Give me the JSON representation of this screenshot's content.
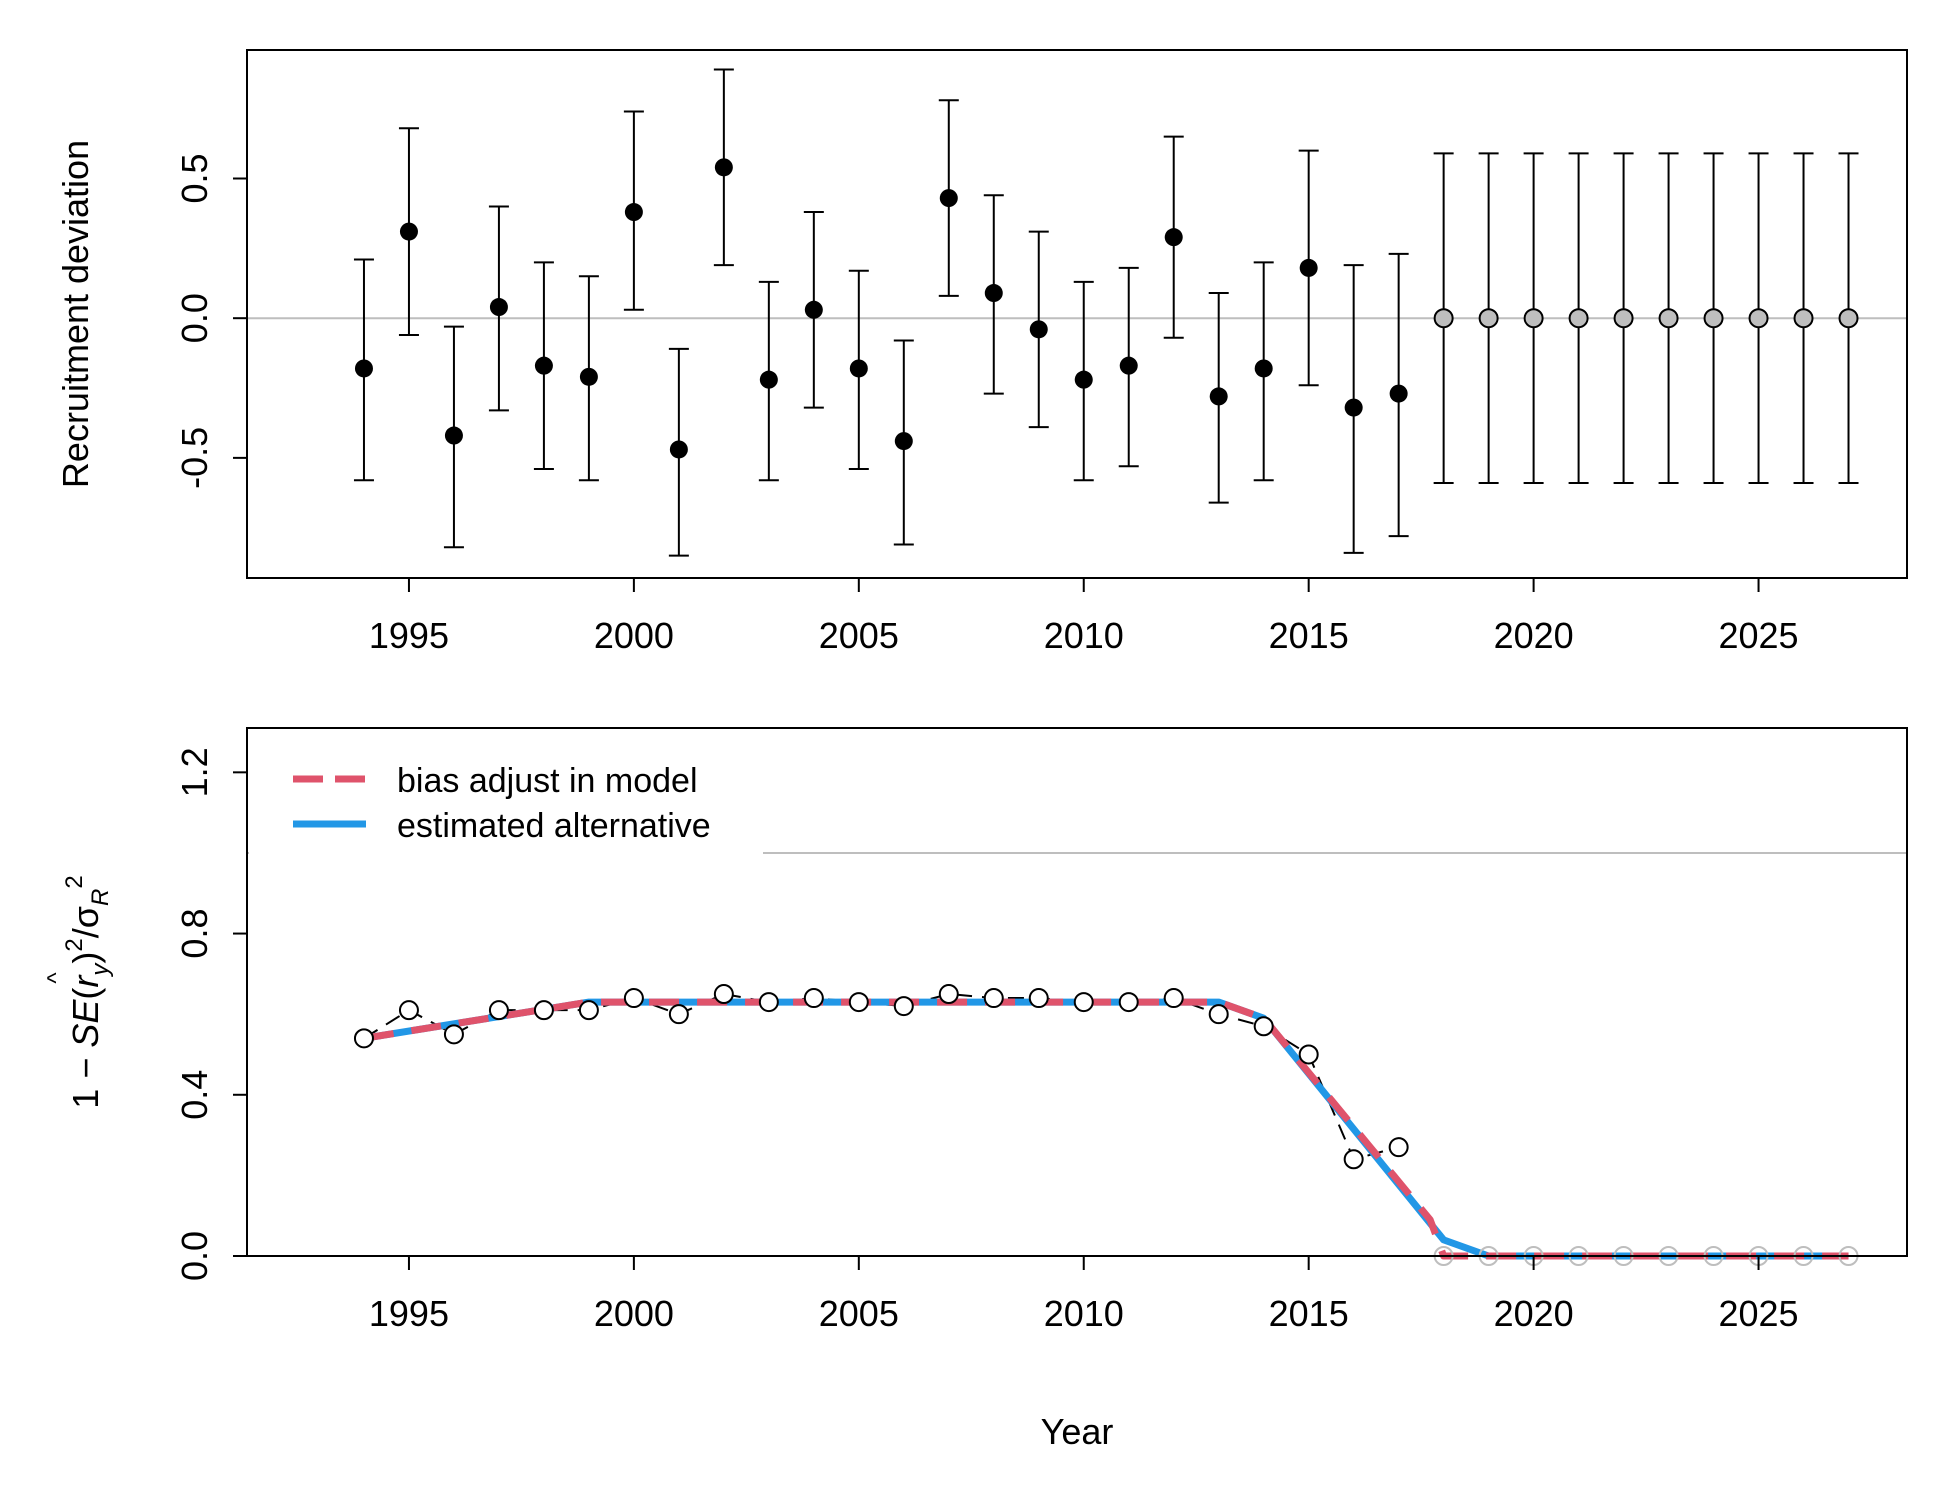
{
  "chart_data": [
    {
      "type": "scatter",
      "panel": "top",
      "ylabel": "Recruitment deviation",
      "xlim": [
        1991.4,
        2028.3
      ],
      "ylim": [
        -0.93,
        0.96
      ],
      "x_ticks": [
        1995,
        2000,
        2005,
        2010,
        2015,
        2020,
        2025
      ],
      "y_ticks": [
        -0.5,
        0.0,
        0.5
      ],
      "y_tick_labels": [
        "-0.5",
        "0.0",
        "0.5"
      ],
      "reference_line": 0,
      "grid": false,
      "colors": {
        "estimated": "#000000",
        "forecast": "#bebebe",
        "reference": "#bebebe"
      },
      "series": [
        {
          "x": [
            1994,
            1995,
            1996,
            1997,
            1998,
            1999,
            2000,
            2001,
            2002,
            2003,
            2004,
            2005,
            2006,
            2007,
            2008,
            2009,
            2010,
            2011,
            2012,
            2013,
            2014,
            2015,
            2016,
            2017
          ],
          "values": [
            -0.18,
            0.31,
            -0.42,
            0.04,
            -0.17,
            -0.21,
            0.38,
            -0.47,
            0.54,
            -0.22,
            0.03,
            -0.18,
            -0.44,
            0.43,
            0.09,
            -0.04,
            -0.22,
            -0.17,
            0.29,
            -0.28,
            -0.18,
            0.18,
            -0.32,
            -0.27
          ],
          "lower": [
            -0.58,
            -0.06,
            -0.82,
            -0.33,
            -0.54,
            -0.58,
            0.03,
            -0.85,
            0.19,
            -0.58,
            -0.32,
            -0.54,
            -0.81,
            0.08,
            -0.27,
            -0.39,
            -0.58,
            -0.53,
            -0.07,
            -0.66,
            -0.58,
            -0.24,
            -0.84,
            -0.78
          ],
          "upper": [
            0.21,
            0.68,
            -0.03,
            0.4,
            0.2,
            0.15,
            0.74,
            -0.11,
            0.89,
            0.13,
            0.38,
            0.17,
            -0.08,
            0.78,
            0.44,
            0.31,
            0.13,
            0.18,
            0.65,
            0.09,
            0.2,
            0.6,
            0.19,
            0.23
          ]
        },
        {
          "x": [
            2018,
            2019,
            2020,
            2021,
            2022,
            2023,
            2024,
            2025,
            2026,
            2027
          ],
          "values": [
            0,
            0,
            0,
            0,
            0,
            0,
            0,
            0,
            0,
            0
          ],
          "lower": [
            -0.59,
            -0.59,
            -0.59,
            -0.59,
            -0.59,
            -0.59,
            -0.59,
            -0.59,
            -0.59,
            -0.59
          ],
          "upper": [
            0.59,
            0.59,
            0.59,
            0.59,
            0.59,
            0.59,
            0.59,
            0.59,
            0.59,
            0.59
          ]
        }
      ]
    },
    {
      "type": "line",
      "panel": "bottom",
      "xlabel": "Year",
      "ylabel": "1 − SE(r̂y)² / σR²",
      "xlim": [
        1991.4,
        2028.3
      ],
      "ylim": [
        0,
        1.31
      ],
      "x_ticks": [
        1995,
        2000,
        2005,
        2010,
        2015,
        2020,
        2025
      ],
      "y_ticks": [
        0.0,
        0.4,
        0.8,
        1.2
      ],
      "y_tick_labels": [
        "0.0",
        "0.4",
        "0.8",
        "1.2"
      ],
      "reference_line": 1.0,
      "grid": false,
      "legend_position": "top-left",
      "legend": [
        "bias adjust in model",
        "estimated alternative"
      ],
      "colors": {
        "bias": "#df536b",
        "alt": "#2297e6",
        "points": "#000000",
        "forecast": "#bebebe"
      },
      "points": {
        "x": [
          1994,
          1995,
          1996,
          1997,
          1998,
          1999,
          2000,
          2001,
          2002,
          2003,
          2004,
          2005,
          2006,
          2007,
          2008,
          2009,
          2010,
          2011,
          2012,
          2013,
          2014,
          2015,
          2016,
          2017
        ],
        "values": [
          0.54,
          0.61,
          0.55,
          0.61,
          0.61,
          0.61,
          0.64,
          0.6,
          0.65,
          0.63,
          0.64,
          0.63,
          0.62,
          0.65,
          0.64,
          0.64,
          0.63,
          0.63,
          0.64,
          0.6,
          0.57,
          0.5,
          0.24,
          0.27
        ]
      },
      "forecast_points": {
        "x": [
          2018,
          2019,
          2020,
          2021,
          2022,
          2023,
          2024,
          2025,
          2026,
          2027
        ],
        "values": [
          0,
          0,
          0,
          0,
          0,
          0,
          0,
          0,
          0,
          0
        ]
      },
      "series": [
        {
          "name": "bias adjust in model",
          "x": [
            1994,
            1999,
            2013,
            2014,
            2017.7,
            2018,
            2027
          ],
          "values": [
            0.54,
            0.63,
            0.63,
            0.59,
            0.09,
            0,
            0
          ]
        },
        {
          "name": "estimated alternative",
          "x": [
            1994,
            1999,
            2013,
            2014,
            2018,
            2019,
            2027
          ],
          "values": [
            0.54,
            0.63,
            0.63,
            0.59,
            0.04,
            0,
            0
          ]
        }
      ]
    }
  ]
}
